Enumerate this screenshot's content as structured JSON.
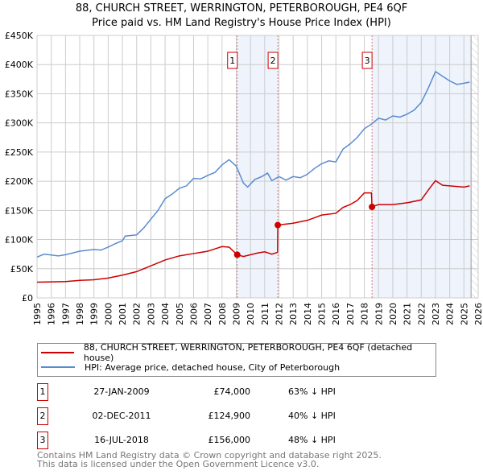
{
  "chart_data": {
    "type": "line",
    "title": "88, CHURCH STREET, WERRINGTON, PETERBOROUGH, PE4 6QF",
    "subtitle": "Price paid vs. HM Land Registry's House Price Index (HPI)",
    "xlim": [
      1995,
      2026
    ],
    "ylim": [
      0,
      450000
    ],
    "x_ticks": [
      "1995",
      "1996",
      "1997",
      "1998",
      "1999",
      "2000",
      "2001",
      "2002",
      "2003",
      "2004",
      "2005",
      "2006",
      "2007",
      "2008",
      "2009",
      "2010",
      "2011",
      "2012",
      "2013",
      "2014",
      "2015",
      "2016",
      "2017",
      "2018",
      "2019",
      "2020",
      "2021",
      "2022",
      "2023",
      "2024",
      "2025",
      "2026"
    ],
    "y_ticks": [
      {
        "v": 0,
        "label": "£0"
      },
      {
        "v": 50000,
        "label": "£50K"
      },
      {
        "v": 100000,
        "label": "£100K"
      },
      {
        "v": 150000,
        "label": "£150K"
      },
      {
        "v": 200000,
        "label": "£200K"
      },
      {
        "v": 250000,
        "label": "£250K"
      },
      {
        "v": 300000,
        "label": "£300K"
      },
      {
        "v": 350000,
        "label": "£350K"
      },
      {
        "v": 400000,
        "label": "£400K"
      },
      {
        "v": 450000,
        "label": "£450K"
      }
    ],
    "grid": true,
    "series": [
      {
        "name": "88, CHURCH STREET, WERRINGTON, PETERBOROUGH, PE4 6QF (detached house)",
        "color": "#cc0000",
        "x": [
          1995,
          1997,
          1998,
          1999,
          2000,
          2001,
          2002,
          2003,
          2004,
          2005,
          2006,
          2007,
          2008,
          2008.5,
          2009.07,
          2009.5,
          2010.5,
          2011,
          2011.5,
          2011.9,
          2011.92,
          2013,
          2014,
          2015,
          2016,
          2016.5,
          2017,
          2017.5,
          2018,
          2018.5,
          2018.54,
          2019,
          2020,
          2021,
          2022,
          2022.5,
          2023,
          2023.5,
          2024,
          2025,
          2025.4
        ],
        "y": [
          27000,
          28000,
          30000,
          31000,
          34000,
          39000,
          45000,
          55000,
          65000,
          72000,
          76000,
          80000,
          88000,
          87000,
          74000,
          71000,
          77000,
          79000,
          75000,
          78000,
          124900,
          128000,
          133000,
          142000,
          145000,
          155000,
          160000,
          167000,
          180000,
          180000,
          156000,
          160000,
          160000,
          163000,
          168000,
          185000,
          201000,
          193000,
          192000,
          190000,
          192000
        ]
      },
      {
        "name": "HPI: Average price, detached house, City of Peterborough",
        "color": "#5b8bd0",
        "x": [
          1995,
          1995.5,
          1996.5,
          1997,
          1997.5,
          1998,
          1999,
          1999.5,
          2000,
          2000.5,
          2001,
          2001.2,
          2002,
          2002.5,
          2003,
          2003.5,
          2004,
          2004.5,
          2005,
          2005.5,
          2006,
          2006.5,
          2007,
          2007.5,
          2008,
          2008.5,
          2009,
          2009.5,
          2009.8,
          2010.3,
          2010.8,
          2011.2,
          2011.5,
          2012,
          2012.5,
          2013,
          2013.5,
          2014,
          2014.5,
          2015,
          2015.5,
          2016,
          2016.5,
          2017,
          2017.5,
          2018,
          2018.5,
          2019,
          2019.5,
          2020,
          2020.5,
          2021,
          2021.5,
          2022,
          2022.5,
          2023,
          2023.5,
          2024,
          2024.5,
          2025,
          2025.4
        ],
        "y": [
          70000,
          75000,
          72000,
          74000,
          77000,
          80000,
          83000,
          82000,
          87000,
          93000,
          98000,
          106000,
          108000,
          120000,
          135000,
          150000,
          170000,
          178000,
          188000,
          192000,
          205000,
          204000,
          210000,
          215000,
          228000,
          237000,
          226000,
          197000,
          190000,
          203000,
          208000,
          214000,
          201000,
          208000,
          202000,
          208000,
          206000,
          212000,
          222000,
          230000,
          235000,
          233000,
          255000,
          264000,
          275000,
          290000,
          298000,
          308000,
          305000,
          312000,
          310000,
          315000,
          322000,
          335000,
          360000,
          388000,
          380000,
          372000,
          366000,
          368000,
          370000
        ]
      }
    ],
    "sales": [
      {
        "label": "1",
        "x": 2009.07,
        "y": 74000,
        "date": "27-JAN-2009",
        "price": "£74,000",
        "hpi": "63% ↓ HPI"
      },
      {
        "label": "2",
        "x": 2011.92,
        "y": 124900,
        "date": "02-DEC-2011",
        "price": "£124,900",
        "hpi": "40% ↓ HPI"
      },
      {
        "label": "3",
        "x": 2018.54,
        "y": 156000,
        "date": "16-JUL-2018",
        "price": "£156,000",
        "hpi": "48% ↓ HPI"
      }
    ],
    "shaded_ranges": [
      [
        2009.07,
        2011.92
      ],
      [
        2018.54,
        2025.5
      ]
    ],
    "forecast_start": 2025.5,
    "legend_position": "below"
  },
  "footer": [
    "Contains HM Land Registry data © Crown copyright and database right 2025.",
    "This data is licensed under the Open Government Licence v3.0."
  ]
}
